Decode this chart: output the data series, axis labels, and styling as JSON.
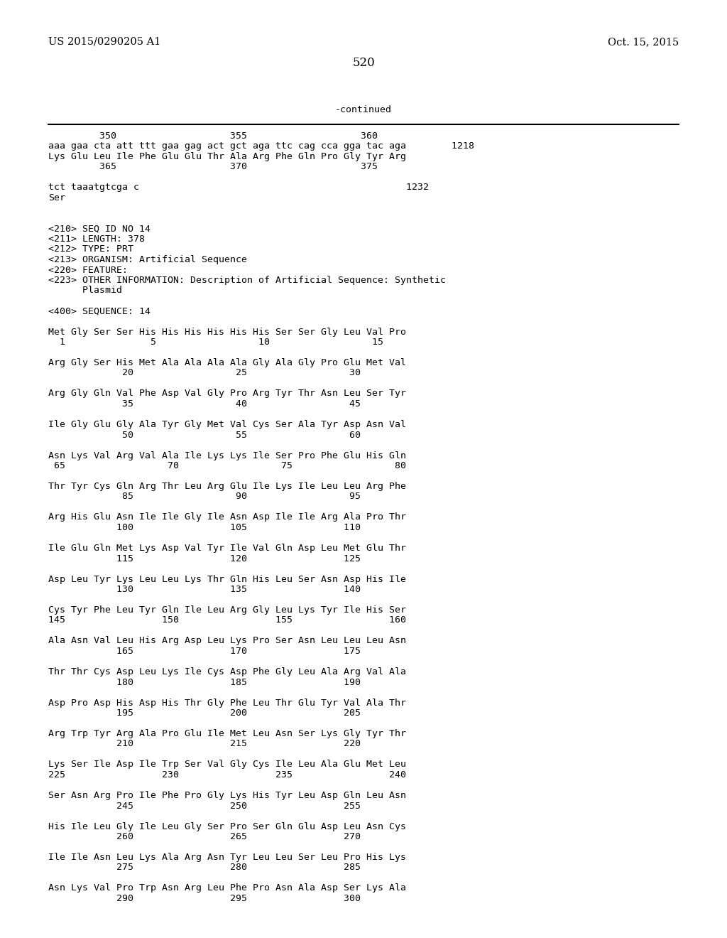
{
  "background_color": "#ffffff",
  "left_header": "US 2015/0290205 A1",
  "right_header": "Oct. 15, 2015",
  "page_number": "520",
  "continued_text": "-continued",
  "font_size_body": 9.5,
  "font_size_header": 10.5,
  "font_size_page": 12,
  "content": [
    "         350                    355                    360",
    "aaa gaa cta att ttt gaa gag act gct aga ttc cag cca gga tac aga        1218",
    "Lys Glu Leu Ile Phe Glu Glu Thr Ala Arg Phe Gln Pro Gly Tyr Arg",
    "         365                    370                    375",
    "",
    "tct taaatgtcga c                                               1232",
    "Ser",
    "",
    "",
    "<210> SEQ ID NO 14",
    "<211> LENGTH: 378",
    "<212> TYPE: PRT",
    "<213> ORGANISM: Artificial Sequence",
    "<220> FEATURE:",
    "<223> OTHER INFORMATION: Description of Artificial Sequence: Synthetic",
    "      Plasmid",
    "",
    "<400> SEQUENCE: 14",
    "",
    "Met Gly Ser Ser His His His His His His Ser Ser Gly Leu Val Pro",
    "  1               5                  10                  15",
    "",
    "Arg Gly Ser His Met Ala Ala Ala Ala Gly Ala Gly Pro Glu Met Val",
    "             20                  25                  30",
    "",
    "Arg Gly Gln Val Phe Asp Val Gly Pro Arg Tyr Thr Asn Leu Ser Tyr",
    "             35                  40                  45",
    "",
    "Ile Gly Glu Gly Ala Tyr Gly Met Val Cys Ser Ala Tyr Asp Asn Val",
    "             50                  55                  60",
    "",
    "Asn Lys Val Arg Val Ala Ile Lys Lys Ile Ser Pro Phe Glu His Gln",
    " 65                  70                  75                  80",
    "",
    "Thr Tyr Cys Gln Arg Thr Leu Arg Glu Ile Lys Ile Leu Leu Arg Phe",
    "             85                  90                  95",
    "",
    "Arg His Glu Asn Ile Ile Gly Ile Asn Asp Ile Ile Arg Ala Pro Thr",
    "            100                 105                 110",
    "",
    "Ile Glu Gln Met Lys Asp Val Tyr Ile Val Gln Asp Leu Met Glu Thr",
    "            115                 120                 125",
    "",
    "Asp Leu Tyr Lys Leu Leu Lys Thr Gln His Leu Ser Asn Asp His Ile",
    "            130                 135                 140",
    "",
    "Cys Tyr Phe Leu Tyr Gln Ile Leu Arg Gly Leu Lys Tyr Ile His Ser",
    "145                 150                 155                 160",
    "",
    "Ala Asn Val Leu His Arg Asp Leu Lys Pro Ser Asn Leu Leu Leu Asn",
    "            165                 170                 175",
    "",
    "Thr Thr Cys Asp Leu Lys Ile Cys Asp Phe Gly Leu Ala Arg Val Ala",
    "            180                 185                 190",
    "",
    "Asp Pro Asp His Asp His Thr Gly Phe Leu Thr Glu Tyr Val Ala Thr",
    "            195                 200                 205",
    "",
    "Arg Trp Tyr Arg Ala Pro Glu Ile Met Leu Asn Ser Lys Gly Tyr Thr",
    "            210                 215                 220",
    "",
    "Lys Ser Ile Asp Ile Trp Ser Val Gly Cys Ile Leu Ala Glu Met Leu",
    "225                 230                 235                 240",
    "",
    "Ser Asn Arg Pro Ile Phe Pro Gly Lys His Tyr Leu Asp Gln Leu Asn",
    "            245                 250                 255",
    "",
    "His Ile Leu Gly Ile Leu Gly Ser Pro Ser Gln Glu Asp Leu Asn Cys",
    "            260                 265                 270",
    "",
    "Ile Ile Asn Leu Lys Ala Arg Asn Tyr Leu Leu Ser Leu Pro His Lys",
    "            275                 280                 285",
    "",
    "Asn Lys Val Pro Trp Asn Arg Leu Phe Pro Asn Ala Asp Ser Lys Ala",
    "            290                 295                 300"
  ]
}
